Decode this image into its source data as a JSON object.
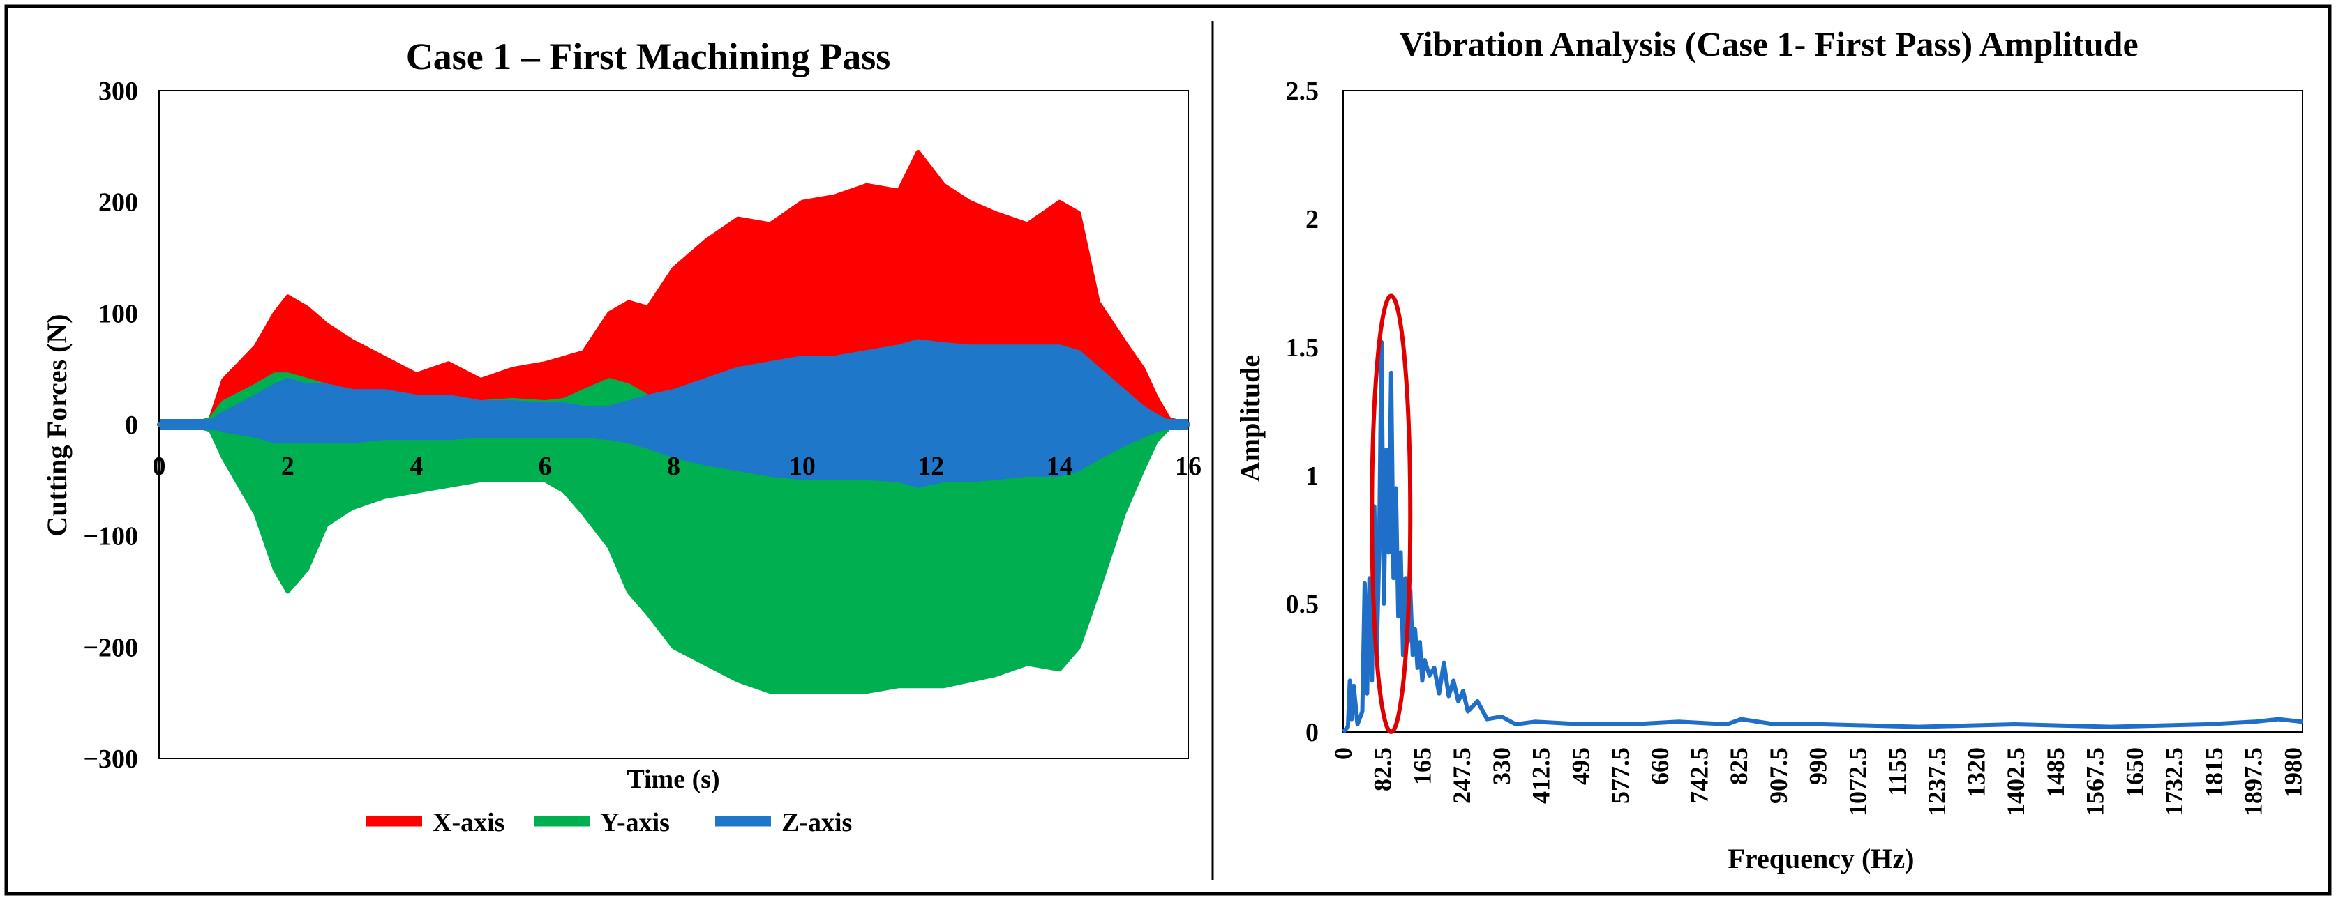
{
  "colors": {
    "x_axis": "#ff0000",
    "y_axis": "#00b050",
    "z_axis": "#1f77c9",
    "fft": "#1f6fc8",
    "highlight": "#e00000",
    "frame": "#000000"
  },
  "chart_data": [
    {
      "type": "area",
      "title": "Case 1 – First Machining Pass",
      "xlabel": "Time (s)",
      "ylabel": "Cutting Forces (N)",
      "xlim": [
        0,
        16
      ],
      "ylim": [
        -300,
        300
      ],
      "xticks": [
        "0",
        "2",
        "4",
        "6",
        "8",
        "10",
        "12",
        "14",
        "16"
      ],
      "yticks": [
        "300",
        "200",
        "100",
        "0",
        "−100",
        "−200",
        "−300"
      ],
      "legend_position": "bottom",
      "x": [
        0,
        0.5,
        0.8,
        1.0,
        1.5,
        1.8,
        2.0,
        2.3,
        2.6,
        3.0,
        3.5,
        4.0,
        4.5,
        5.0,
        5.5,
        6.0,
        6.3,
        6.6,
        7.0,
        7.3,
        7.6,
        8.0,
        8.5,
        9.0,
        9.5,
        10.0,
        10.5,
        11.0,
        11.5,
        11.8,
        12.2,
        12.6,
        13.0,
        13.5,
        14.0,
        14.3,
        14.6,
        15.0,
        15.3,
        15.5,
        15.7,
        16.0
      ],
      "series": [
        {
          "name": "X-axis",
          "color_key": "x_axis",
          "upper": [
            0,
            0,
            5,
            40,
            70,
            100,
            115,
            105,
            90,
            75,
            60,
            45,
            55,
            40,
            50,
            55,
            60,
            65,
            100,
            110,
            105,
            140,
            165,
            185,
            180,
            200,
            205,
            215,
            210,
            245,
            215,
            200,
            190,
            180,
            200,
            190,
            110,
            75,
            50,
            25,
            5,
            0
          ],
          "lower": [
            0,
            0,
            -2,
            -5,
            -5,
            -5,
            -5,
            -5,
            -5,
            -5,
            -5,
            -5,
            -5,
            -5,
            -5,
            -5,
            -5,
            -5,
            -5,
            -5,
            -5,
            -5,
            -5,
            -5,
            -5,
            -5,
            -5,
            -5,
            -5,
            -5,
            -5,
            -5,
            -5,
            -5,
            -5,
            -5,
            -5,
            -5,
            -5,
            -5,
            -2,
            0
          ]
        },
        {
          "name": "Y-axis",
          "color_key": "y_axis",
          "upper": [
            0,
            0,
            5,
            20,
            35,
            45,
            45,
            40,
            35,
            30,
            25,
            25,
            25,
            20,
            22,
            20,
            22,
            30,
            40,
            35,
            25,
            20,
            20,
            18,
            18,
            18,
            18,
            18,
            18,
            18,
            18,
            18,
            18,
            18,
            18,
            18,
            18,
            15,
            10,
            5,
            2,
            0
          ],
          "lower": [
            0,
            0,
            -5,
            -30,
            -80,
            -130,
            -150,
            -130,
            -90,
            -75,
            -65,
            -60,
            -55,
            -50,
            -50,
            -50,
            -60,
            -80,
            -110,
            -150,
            -170,
            -200,
            -215,
            -230,
            -240,
            -240,
            -240,
            -240,
            -235,
            -235,
            -235,
            -230,
            -225,
            -215,
            -220,
            -200,
            -150,
            -80,
            -40,
            -15,
            -3,
            0
          ]
        },
        {
          "name": "Z-axis",
          "color_key": "z_axis",
          "upper": [
            0,
            0,
            2,
            10,
            25,
            35,
            40,
            35,
            35,
            30,
            30,
            25,
            25,
            20,
            20,
            18,
            18,
            15,
            15,
            20,
            25,
            30,
            40,
            50,
            55,
            60,
            60,
            65,
            70,
            75,
            72,
            70,
            70,
            70,
            70,
            65,
            50,
            30,
            15,
            8,
            2,
            0
          ],
          "lower": [
            0,
            0,
            -2,
            -5,
            -10,
            -15,
            -15,
            -15,
            -15,
            -15,
            -12,
            -12,
            -12,
            -10,
            -10,
            -10,
            -10,
            -10,
            -12,
            -15,
            -20,
            -28,
            -35,
            -40,
            -45,
            -48,
            -48,
            -48,
            -50,
            -55,
            -50,
            -50,
            -48,
            -45,
            -45,
            -40,
            -30,
            -18,
            -10,
            -5,
            -2,
            0
          ]
        }
      ]
    },
    {
      "type": "line",
      "title": "Vibration Analysis (Case 1- First Pass) Amplitude",
      "xlabel": "Frequency (Hz)",
      "ylabel": "Amplitude",
      "xlim": [
        0,
        2000
      ],
      "ylim": [
        0,
        2.5
      ],
      "xticks": [
        "0",
        "82.5",
        "165",
        "247.5",
        "330",
        "412.5",
        "495",
        "577.5",
        "660",
        "742.5",
        "825",
        "907.5",
        "990",
        "1072.5",
        "1155",
        "1237.5",
        "1320",
        "1402.5",
        "1485",
        "1567.5",
        "1650",
        "1732.5",
        "1815",
        "1897.5",
        "1980"
      ],
      "yticks": [
        "0",
        "0.5",
        "1",
        "1.5",
        "2",
        "2.5"
      ],
      "x": [
        0,
        10,
        14,
        18,
        22,
        30,
        40,
        45,
        50,
        55,
        60,
        65,
        70,
        75,
        80,
        85,
        90,
        95,
        100,
        105,
        110,
        115,
        120,
        125,
        130,
        135,
        140,
        145,
        150,
        155,
        160,
        165,
        170,
        180,
        190,
        200,
        210,
        220,
        230,
        240,
        250,
        260,
        280,
        300,
        330,
        360,
        400,
        500,
        600,
        700,
        800,
        830,
        900,
        1000,
        1200,
        1400,
        1600,
        1800,
        1900,
        1950,
        2000
      ],
      "y": [
        0,
        0.02,
        0.2,
        0.05,
        0.18,
        0.03,
        0.08,
        0.58,
        0.15,
        0.6,
        0.2,
        0.88,
        0.3,
        0.7,
        1.52,
        0.5,
        1.1,
        0.7,
        1.4,
        0.6,
        0.95,
        0.45,
        0.7,
        0.3,
        0.6,
        0.35,
        0.55,
        0.3,
        0.4,
        0.25,
        0.35,
        0.2,
        0.28,
        0.22,
        0.25,
        0.15,
        0.27,
        0.14,
        0.2,
        0.12,
        0.16,
        0.08,
        0.12,
        0.05,
        0.06,
        0.03,
        0.04,
        0.03,
        0.03,
        0.04,
        0.03,
        0.05,
        0.03,
        0.03,
        0.02,
        0.03,
        0.02,
        0.03,
        0.04,
        0.05,
        0.04
      ],
      "annotation": {
        "type": "ellipse",
        "center_x": 100,
        "center_y": 0.85,
        "rx": 40,
        "ry": 0.85
      }
    }
  ]
}
